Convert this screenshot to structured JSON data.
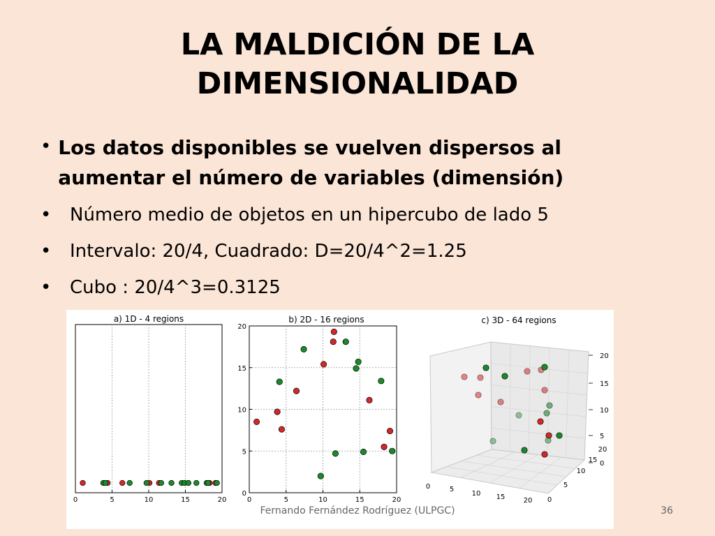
{
  "title": "LA MALDICIÓN DE LA DIMENSIONALIDAD",
  "bullets": [
    "Los datos disponibles se vuelven dispersos al aumentar el número de variables (dimensión)",
    "Número medio de objetos en un hipercubo de lado 5",
    "Intervalo: 20/4, Cuadrado: D=20/4^2=1.25",
    "Cubo : 20/4^3=0.3125"
  ],
  "footer": "Fernando Fernández Rodríguez (ULPGC)",
  "page_number": "36",
  "colors": {
    "background": "#fbe5d6",
    "red_points": "#d62728",
    "green_points": "#1a8a2a"
  },
  "chart_data": [
    {
      "type": "scatter",
      "title": "a) 1D - 4 regions",
      "xlim": [
        0,
        20
      ],
      "xticks": [
        "0",
        "5",
        "10",
        "15",
        "20"
      ],
      "grid": true,
      "series": [
        {
          "color": "red",
          "x": [
            1.0,
            4.4,
            6.4,
            10.1,
            11.4,
            15.4,
            18.3,
            19.1
          ]
        },
        {
          "color": "green",
          "x": [
            3.8,
            4.1,
            7.4,
            9.7,
            11.7,
            13.1,
            14.5,
            14.9,
            15.4,
            16.5,
            17.9,
            18.1,
            19.3
          ]
        }
      ]
    },
    {
      "type": "scatter",
      "title": "b) 2D - 16 regions",
      "xlim": [
        0,
        20
      ],
      "ylim": [
        0,
        20
      ],
      "xticks": [
        "0",
        "5",
        "10",
        "15",
        "20"
      ],
      "yticks": [
        "0",
        "5",
        "10",
        "15",
        "20"
      ],
      "grid": true,
      "series": [
        {
          "color": "red",
          "points": [
            [
              1.0,
              8.5
            ],
            [
              3.8,
              9.7
            ],
            [
              4.4,
              7.6
            ],
            [
              6.4,
              12.2
            ],
            [
              10.1,
              15.4
            ],
            [
              11.4,
              18.1
            ],
            [
              11.5,
              19.3
            ],
            [
              16.3,
              11.1
            ],
            [
              18.3,
              5.5
            ],
            [
              19.1,
              7.4
            ]
          ]
        },
        {
          "color": "green",
          "points": [
            [
              4.1,
              13.3
            ],
            [
              7.4,
              17.2
            ],
            [
              9.7,
              2.0
            ],
            [
              11.7,
              4.7
            ],
            [
              13.1,
              18.1
            ],
            [
              14.5,
              14.9
            ],
            [
              14.8,
              15.7
            ],
            [
              15.5,
              4.9
            ],
            [
              17.9,
              13.4
            ],
            [
              19.4,
              5.0
            ]
          ]
        }
      ]
    },
    {
      "type": "scatter3d",
      "title": "c) 3D - 64 regions",
      "xlim": [
        0,
        20
      ],
      "ylim": [
        0,
        20
      ],
      "zlim": [
        0,
        20
      ],
      "xticks": [
        "0",
        "5",
        "10",
        "15",
        "20"
      ],
      "yticks": [
        "0",
        "5",
        "10",
        "15",
        "20"
      ],
      "zticks": [
        "0",
        "5",
        "10",
        "15",
        "20"
      ]
    }
  ]
}
